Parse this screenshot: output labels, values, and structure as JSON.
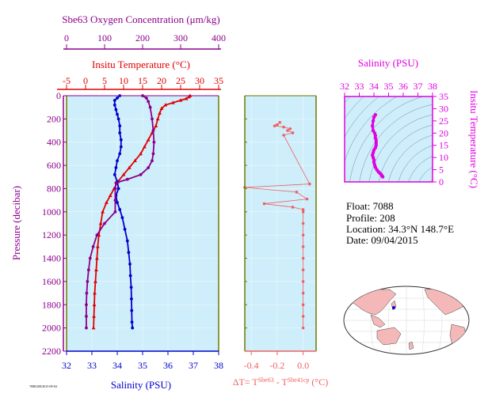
{
  "colors": {
    "temperature": "#e00000",
    "salinity": "#0000cc",
    "oxygen": "#8b008b",
    "delta": "#f06060",
    "ts": "#e000e0",
    "panel_bg": "#cdeefa",
    "frame_green": "#6b7b00",
    "map_land": "#f5b8b8",
    "map_ocean": "#ffffff"
  },
  "info": {
    "float": "Float:  7088",
    "profile": "Profile:  208",
    "location": "Location:  34.3°N  148.7°E",
    "date": "Date:  09/04/2015"
  },
  "footer_code": "7088/208/2015-09-04",
  "chart_data": [
    {
      "type": "line",
      "panel": "main",
      "ylabel": "Pressure (decibar)",
      "y_reversed": true,
      "ylim": [
        0,
        2200
      ],
      "yticks": [
        "0",
        "200",
        "400",
        "600",
        "800",
        "1000",
        "1200",
        "1400",
        "1600",
        "1800",
        "2000",
        "2200"
      ],
      "axes": {
        "oxygen": {
          "label": "Sbe63 Oxygen Concentration (μm/kg)",
          "lim": [
            0,
            400
          ],
          "ticks": [
            "0",
            "100",
            "200",
            "300",
            "400"
          ]
        },
        "temperature": {
          "label": "Insitu Temperature (°C)",
          "lim": [
            -5,
            35
          ],
          "ticks": [
            "-5",
            "0",
            "5",
            "10",
            "15",
            "20",
            "25",
            "30",
            "35"
          ]
        },
        "salinity": {
          "label": "Salinity (PSU)",
          "lim": [
            32,
            38
          ],
          "ticks": [
            "32",
            "33",
            "34",
            "35",
            "36",
            "37",
            "38"
          ]
        }
      },
      "series": [
        {
          "axis": "temperature",
          "points": [
            [
              27.5,
              0
            ],
            [
              27.2,
              10
            ],
            [
              26.5,
              25
            ],
            [
              25,
              40
            ],
            [
              23,
              60
            ],
            [
              21,
              80
            ],
            [
              20,
              110
            ],
            [
              19.5,
              150
            ],
            [
              19,
              200
            ],
            [
              18.5,
              260
            ],
            [
              17.5,
              320
            ],
            [
              16.5,
              380
            ],
            [
              15.5,
              440
            ],
            [
              14.5,
              500
            ],
            [
              13,
              560
            ],
            [
              11.5,
              620
            ],
            [
              10,
              680
            ],
            [
              8.5,
              740
            ],
            [
              7.5,
              800
            ],
            [
              6.5,
              860
            ],
            [
              5.5,
              920
            ],
            [
              4.5,
              1000
            ],
            [
              4,
              1100
            ],
            [
              3.5,
              1200
            ],
            [
              3.2,
              1300
            ],
            [
              3,
              1400
            ],
            [
              2.8,
              1500
            ],
            [
              2.6,
              1600
            ],
            [
              2.4,
              1700
            ],
            [
              2.3,
              1800
            ],
            [
              2.2,
              1900
            ],
            [
              2.1,
              2000
            ]
          ]
        },
        {
          "axis": "salinity",
          "points": [
            [
              34.1,
              0
            ],
            [
              34.0,
              20
            ],
            [
              33.9,
              40
            ],
            [
              33.9,
              80
            ],
            [
              33.95,
              120
            ],
            [
              34.0,
              160
            ],
            [
              34.05,
              200
            ],
            [
              34.1,
              260
            ],
            [
              34.1,
              320
            ],
            [
              34.15,
              380
            ],
            [
              34.15,
              440
            ],
            [
              34.1,
              500
            ],
            [
              34.0,
              560
            ],
            [
              33.95,
              620
            ],
            [
              33.9,
              680
            ],
            [
              34.0,
              740
            ],
            [
              34.05,
              800
            ],
            [
              33.95,
              860
            ],
            [
              34.0,
              920
            ],
            [
              34.1,
              980
            ],
            [
              34.2,
              1050
            ],
            [
              34.3,
              1150
            ],
            [
              34.4,
              1250
            ],
            [
              34.45,
              1350
            ],
            [
              34.5,
              1450
            ],
            [
              34.52,
              1550
            ],
            [
              34.55,
              1650
            ],
            [
              34.56,
              1750
            ],
            [
              34.57,
              1850
            ],
            [
              34.58,
              1950
            ],
            [
              34.6,
              2000
            ]
          ]
        },
        {
          "axis": "oxygen",
          "points": [
            [
              200,
              0
            ],
            [
              210,
              20
            ],
            [
              215,
              50
            ],
            [
              220,
              100
            ],
            [
              225,
              200
            ],
            [
              228,
              300
            ],
            [
              230,
              400
            ],
            [
              228,
              500
            ],
            [
              225,
              560
            ],
            [
              215,
              620
            ],
            [
              195,
              680
            ],
            [
              160,
              720
            ],
            [
              130,
              750
            ],
            [
              128,
              800
            ],
            [
              128,
              900
            ],
            [
              128,
              1000
            ],
            [
              100,
              1100
            ],
            [
              80,
              1200
            ],
            [
              70,
              1300
            ],
            [
              62,
              1400
            ],
            [
              58,
              1500
            ],
            [
              55,
              1600
            ],
            [
              53,
              1700
            ],
            [
              52,
              1800
            ],
            [
              52,
              1900
            ],
            [
              52,
              2000
            ]
          ]
        }
      ]
    },
    {
      "type": "line",
      "panel": "delta",
      "xlabel": "ΔT= T^Sbe63 - T^Sbe41cp (°C)",
      "xlim": [
        -0.45,
        0.1
      ],
      "xticks": [
        "-0.4",
        "-0.2",
        "0.0"
      ],
      "ylim": [
        0,
        2200
      ],
      "series": [
        {
          "name": "ΔT",
          "points": [
            [
              -0.18,
              230
            ],
            [
              -0.2,
              250
            ],
            [
              -0.22,
              260
            ],
            [
              -0.15,
              270
            ],
            [
              -0.1,
              285
            ],
            [
              -0.12,
              300
            ],
            [
              -0.08,
              320
            ],
            [
              -0.15,
              340
            ],
            [
              0.05,
              760
            ],
            [
              -0.45,
              790
            ],
            [
              -0.05,
              830
            ],
            [
              0.03,
              890
            ],
            [
              -0.3,
              930
            ],
            [
              -0.08,
              960
            ],
            [
              0.0,
              980
            ],
            [
              0.0,
              1000
            ],
            [
              0.0,
              1100
            ],
            [
              0.0,
              1200
            ],
            [
              0.0,
              1300
            ],
            [
              0.0,
              1400
            ],
            [
              0.0,
              1500
            ],
            [
              0.0,
              1600
            ],
            [
              0.0,
              1700
            ],
            [
              0.0,
              1800
            ],
            [
              0.0,
              1900
            ],
            [
              0.0,
              2000
            ]
          ]
        }
      ]
    },
    {
      "type": "scatter",
      "panel": "ts",
      "title": "Salinity (PSU)",
      "ylabel": "Insitu Temperature (°C)",
      "xlim": [
        32,
        38
      ],
      "xticks": [
        "32",
        "33",
        "34",
        "35",
        "36",
        "37",
        "38"
      ],
      "ylim": [
        0,
        35
      ],
      "yticks": [
        "0",
        "5",
        "10",
        "15",
        "20",
        "25",
        "30",
        "35"
      ],
      "series": [
        {
          "name": "T-S",
          "points": [
            [
              34.1,
              27.5
            ],
            [
              34.0,
              26.5
            ],
            [
              33.95,
              25
            ],
            [
              33.9,
              23
            ],
            [
              33.95,
              21
            ],
            [
              34.05,
              20
            ],
            [
              34.1,
              19
            ],
            [
              34.1,
              18
            ],
            [
              34.15,
              17
            ],
            [
              34.15,
              16
            ],
            [
              34.15,
              15
            ],
            [
              34.1,
              14
            ],
            [
              34.0,
              13
            ],
            [
              33.95,
              12
            ],
            [
              33.9,
              11
            ],
            [
              33.95,
              10
            ],
            [
              34.0,
              9
            ],
            [
              34.0,
              8
            ],
            [
              34.05,
              7
            ],
            [
              34.1,
              6
            ],
            [
              34.2,
              5
            ],
            [
              34.3,
              4.2
            ],
            [
              34.4,
              3.6
            ],
            [
              34.5,
              3
            ],
            [
              34.55,
              2.5
            ],
            [
              34.6,
              2.1
            ]
          ]
        }
      ]
    }
  ]
}
